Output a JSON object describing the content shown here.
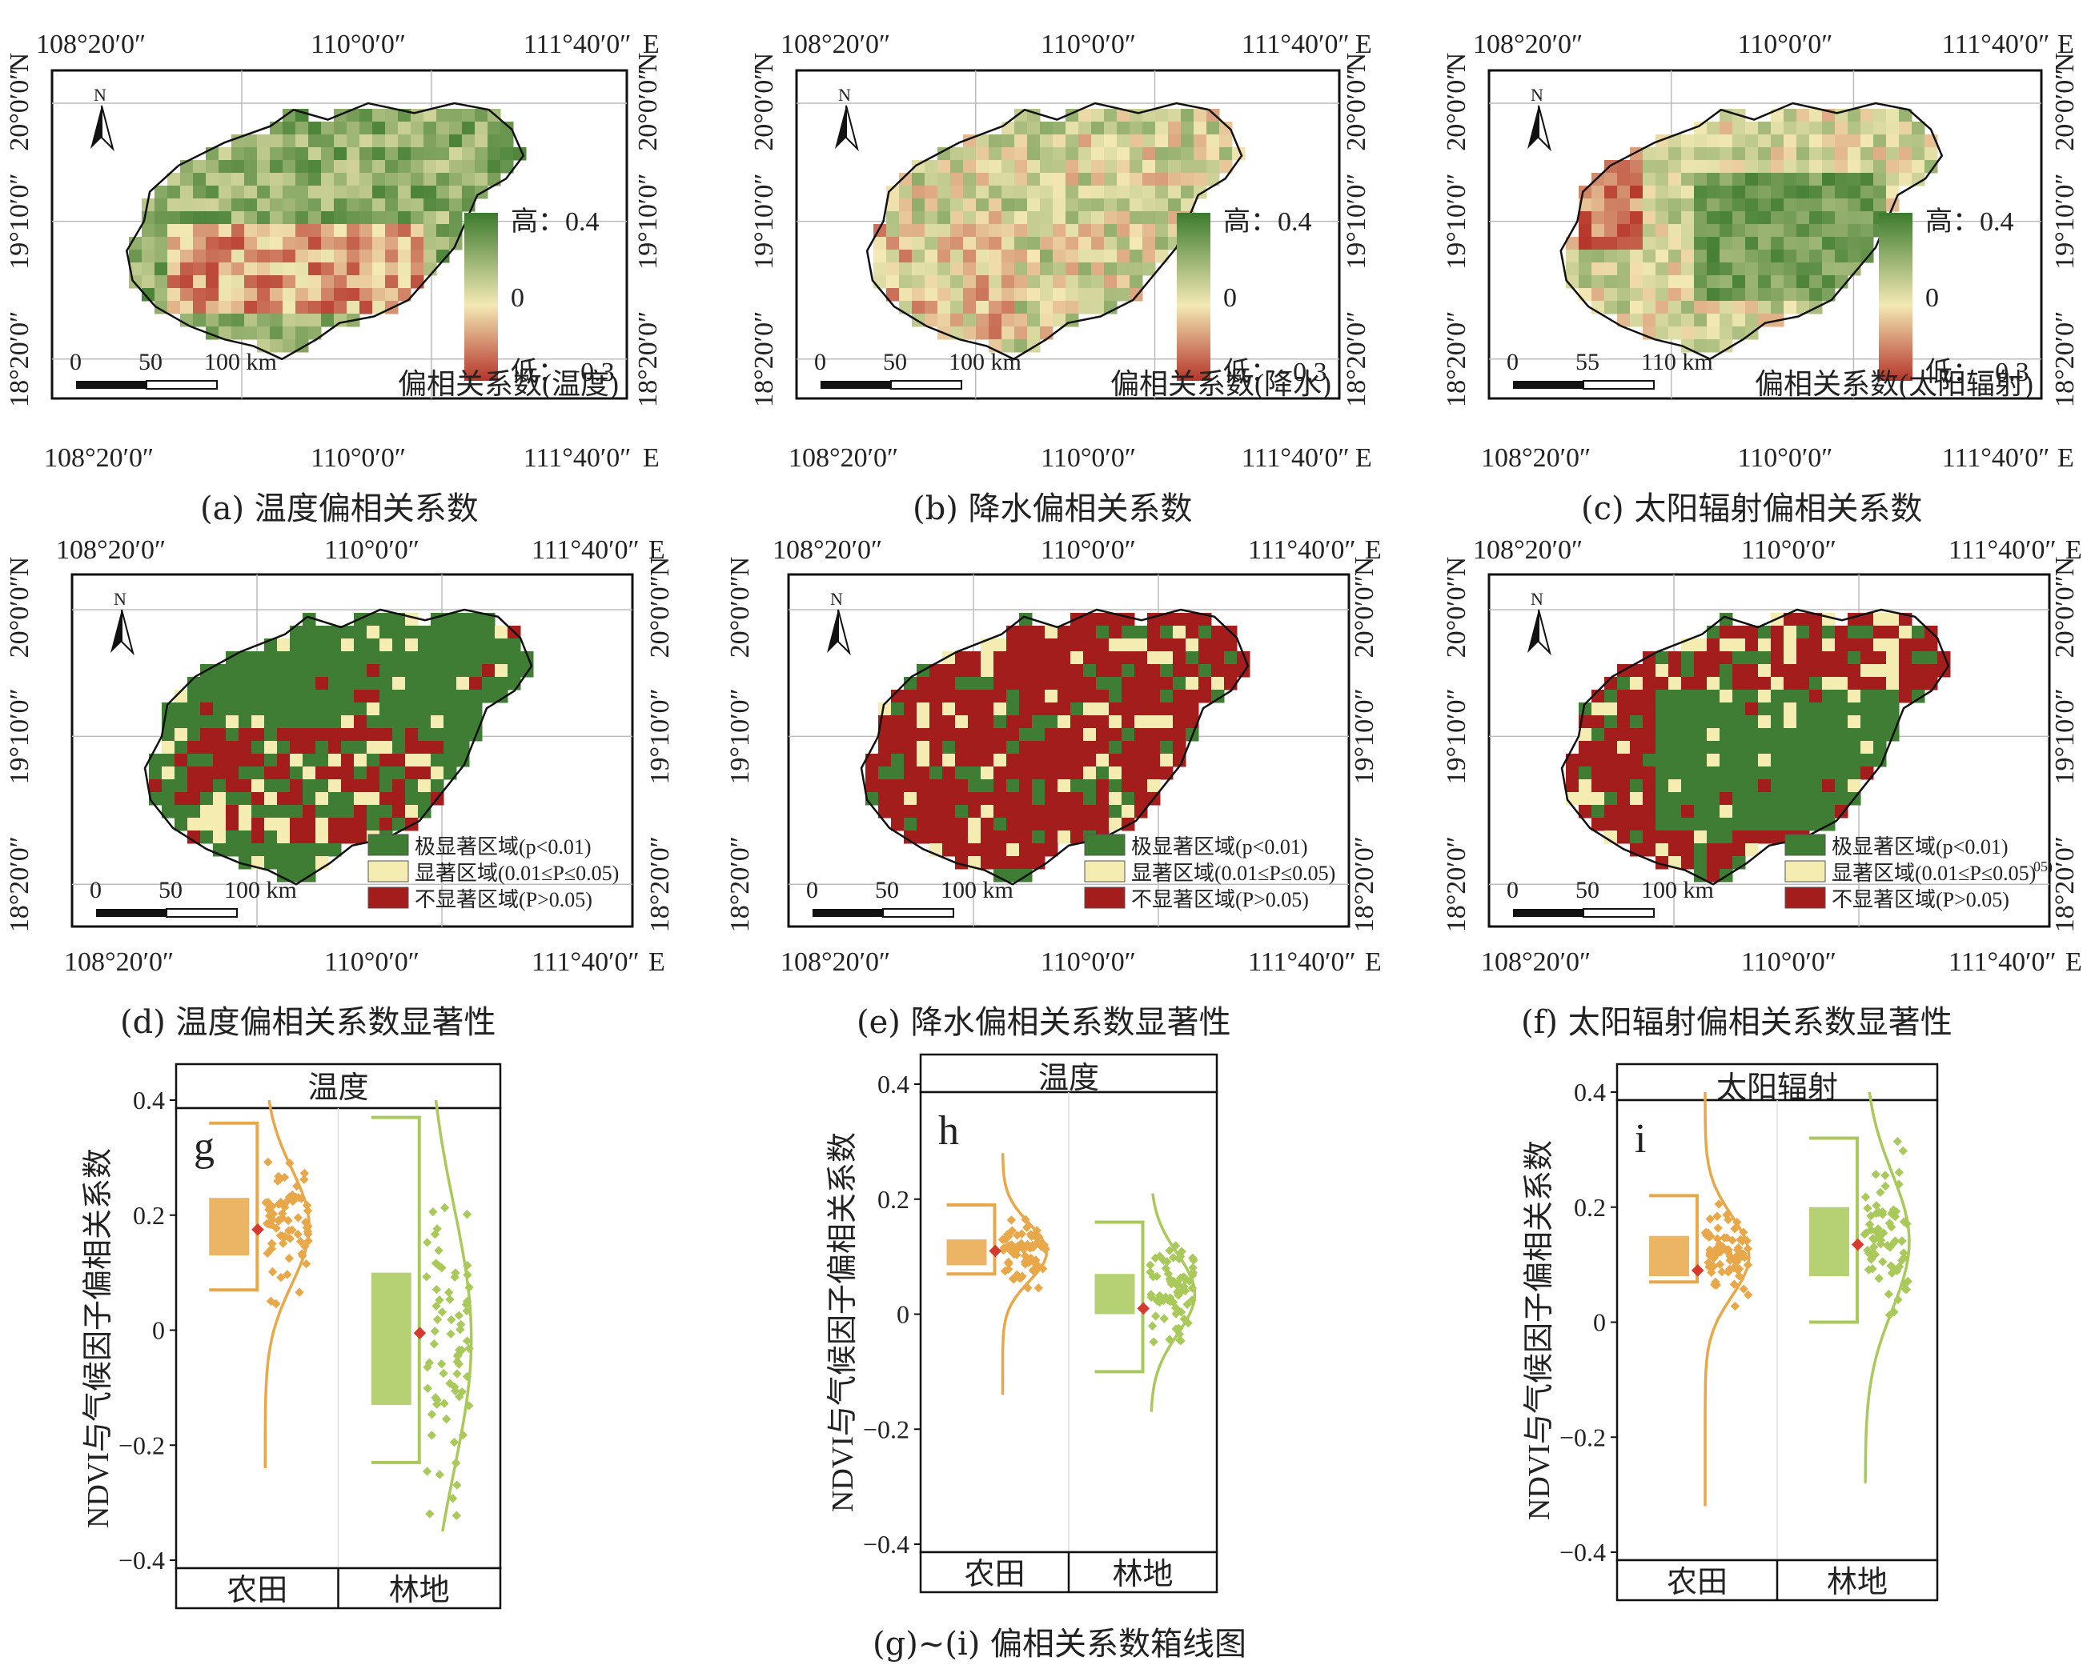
{
  "coord_labels": {
    "lon_left": "108°20′0″",
    "lon_mid": "110°0′0″",
    "lon_right": "111°40′0″",
    "lat_top": "20°0′0″",
    "lat_mid": "19°10′0″",
    "lat_low": "18°20′0″",
    "east": "E",
    "north": "N"
  },
  "north_arrow_label": "N",
  "colors": {
    "high_green": "#3c7a2e",
    "neutral_yellow": "#f3e9b4",
    "low_red": "#b5342a",
    "sig_green": "#3e7d33",
    "sig_yellow": "#f4ecb0",
    "sig_red": "#a41d1d",
    "farmland": "#e8a84a",
    "forest": "#a9c95a",
    "mean_marker": "#d63a2f"
  },
  "maps_continuous": [
    {
      "id": "a",
      "caption": "(a)  温度偏相关系数",
      "legend_title": "偏相关系数(温度)",
      "legend_high": "高：0.4",
      "legend_zero": "0",
      "legend_low": "低：−0.3",
      "scale_labels": [
        "0",
        "50",
        "100 km"
      ],
      "pattern": "temperature"
    },
    {
      "id": "b",
      "caption": "(b)  降水偏相关系数",
      "legend_title": "偏相关系数(降水)",
      "legend_high": "高：0.4",
      "legend_zero": "0",
      "legend_low": "低：−0.3",
      "scale_labels": [
        "0",
        "50",
        "100 km"
      ],
      "pattern": "precipitation"
    },
    {
      "id": "c",
      "caption": "(c)  太阳辐射偏相关系数",
      "legend_title": "偏相关系数(太阳辐射)",
      "legend_high": "高：0.4",
      "legend_zero": "0",
      "legend_low": "低：−0.3",
      "scale_labels": [
        "0",
        "55",
        "110 km"
      ],
      "pattern": "radiation"
    }
  ],
  "maps_significance": [
    {
      "id": "d",
      "caption": "(d)  温度偏相关系数显著性",
      "legend": [
        "极显著区域(p<0.01)",
        "显著区域(0.01≤P≤0.05)",
        "不显著区域(P>0.05)"
      ],
      "scale_labels": [
        "0",
        "50",
        "100 km"
      ],
      "pattern": "temperature"
    },
    {
      "id": "e",
      "caption": "(e)  降水偏相关系数显著性",
      "legend": [
        "极显著区域(p<0.01)",
        "显著区域(0.01≤P≤0.05)",
        "不显著区域(P>0.05)"
      ],
      "scale_labels": [
        "0",
        "50",
        "100 km"
      ],
      "pattern": "precipitation"
    },
    {
      "id": "f",
      "caption": "(f)  太阳辐射偏相关系数显著性",
      "legend": [
        "极显著区域(p<0.01)",
        "显著区域(0.01≤P≤0.05)",
        "不显著区域(P>0.05)"
      ],
      "legend_note": "05)",
      "scale_labels": [
        "0",
        "50",
        "100 km"
      ],
      "pattern": "radiation"
    }
  ],
  "chart_data": [
    {
      "type": "box",
      "panel": "g",
      "facet_title": "温度",
      "ylabel": "NDVI与气候因子偏相关系数",
      "ylim": [
        -0.4,
        0.4
      ],
      "yticks": [
        "0.4",
        "0.2",
        "0",
        "−0.2",
        "−0.4"
      ],
      "categories": [
        "农田",
        "林地"
      ],
      "series": [
        {
          "name": "农田",
          "q1": 0.13,
          "q3": 0.23,
          "mean": 0.175,
          "whisker_low": 0.07,
          "whisker_high": 0.36,
          "dist_min": -0.24,
          "dist_max": 0.4
        },
        {
          "name": "林地",
          "q1": -0.13,
          "q3": 0.1,
          "mean": -0.005,
          "whisker_low": -0.23,
          "whisker_high": 0.37,
          "dist_min": -0.35,
          "dist_max": 0.4
        }
      ]
    },
    {
      "type": "box",
      "panel": "h",
      "facet_title": "温度",
      "ylabel": "NDVI与气候因子偏相关系数",
      "ylim": [
        -0.4,
        0.4
      ],
      "yticks": [
        "0.4",
        "0.2",
        "0",
        "−0.2",
        "−0.4"
      ],
      "categories": [
        "农田",
        "林地"
      ],
      "series": [
        {
          "name": "农田",
          "q1": 0.085,
          "q3": 0.13,
          "mean": 0.11,
          "whisker_low": 0.07,
          "whisker_high": 0.19,
          "dist_min": -0.14,
          "dist_max": 0.28
        },
        {
          "name": "林地",
          "q1": 0.0,
          "q3": 0.07,
          "mean": 0.01,
          "whisker_low": -0.1,
          "whisker_high": 0.16,
          "dist_min": -0.17,
          "dist_max": 0.21
        }
      ]
    },
    {
      "type": "box",
      "panel": "i",
      "facet_title": "太阳辐射",
      "ylabel": "NDVI与气候因子偏相关系数",
      "ylim": [
        -0.4,
        0.4
      ],
      "yticks": [
        "0.4",
        "0.2",
        "0",
        "−0.2",
        "−0.4"
      ],
      "categories": [
        "农田",
        "林地"
      ],
      "series": [
        {
          "name": "农田",
          "q1": 0.08,
          "q3": 0.15,
          "mean": 0.09,
          "whisker_low": 0.07,
          "whisker_high": 0.22,
          "dist_min": -0.32,
          "dist_max": 0.4
        },
        {
          "name": "林地",
          "q1": 0.08,
          "q3": 0.2,
          "mean": 0.135,
          "whisker_low": 0.0,
          "whisker_high": 0.32,
          "dist_min": -0.28,
          "dist_max": 0.4
        }
      ]
    }
  ],
  "bottom_caption": "(g)~(i) 偏相关系数箱线图"
}
